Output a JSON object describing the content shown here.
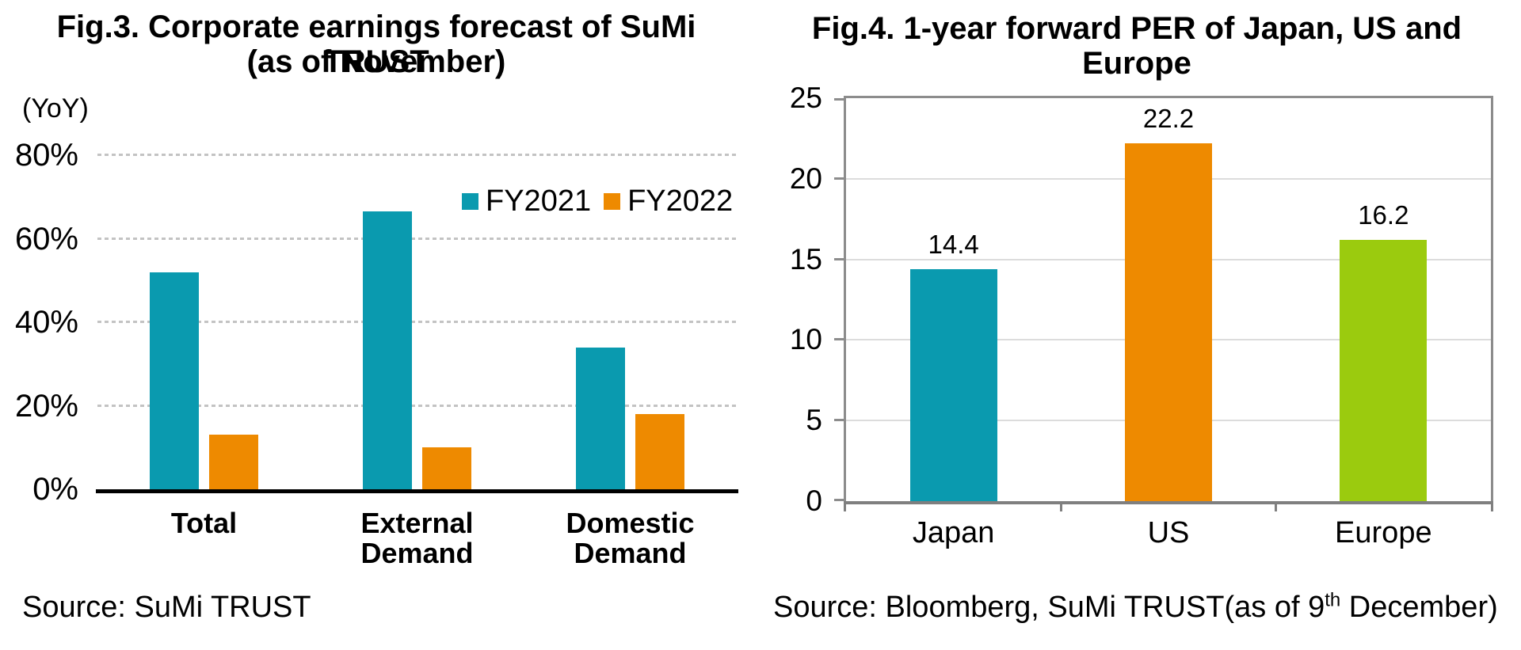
{
  "chart_data": [
    {
      "id": "fig3",
      "type": "bar",
      "title": "Fig.3. Corporate earnings forecast of SuMi TRUST",
      "subtitle": "(as of November)",
      "unit_label": "(YoY)",
      "categories": [
        [
          "Total"
        ],
        [
          "External",
          "Demand"
        ],
        [
          "Domestic",
          "Demand"
        ]
      ],
      "series": [
        {
          "name": "FY2021",
          "color": "#0a9aaf",
          "values": [
            52,
            66.5,
            34
          ]
        },
        {
          "name": "FY2022",
          "color": "#ee8a00",
          "values": [
            13,
            10,
            18
          ]
        }
      ],
      "ylim": [
        0,
        88
      ],
      "yticks": [
        0,
        20,
        40,
        60,
        80
      ],
      "ytick_labels": [
        "0%",
        "20%",
        "40%",
        "60%",
        "80%"
      ],
      "grid": "horizontal dotted",
      "legend_position": "upper right inside",
      "source": "Source: SuMi TRUST"
    },
    {
      "id": "fig4",
      "type": "bar",
      "title": "Fig.4. 1-year forward PER of Japan, US and Europe",
      "categories": [
        "Japan",
        "US",
        "Europe"
      ],
      "values": [
        14.4,
        22.2,
        16.2
      ],
      "data_labels": [
        "14.4",
        "22.2",
        "16.2"
      ],
      "bar_colors": [
        "#0a9aaf",
        "#ee8a00",
        "#9bcb0e"
      ],
      "ylim": [
        0,
        25
      ],
      "yticks": [
        0,
        5,
        10,
        15,
        20,
        25
      ],
      "ytick_labels": [
        "0",
        "5",
        "10",
        "15",
        "20",
        "25"
      ],
      "grid": "horizontal solid",
      "plot_border_color": "#8c8c8c",
      "source_prefix": "Source: Bloomberg, SuMi TRUST(as of 9",
      "source_sup": "th",
      "source_suffix": " December)"
    }
  ]
}
